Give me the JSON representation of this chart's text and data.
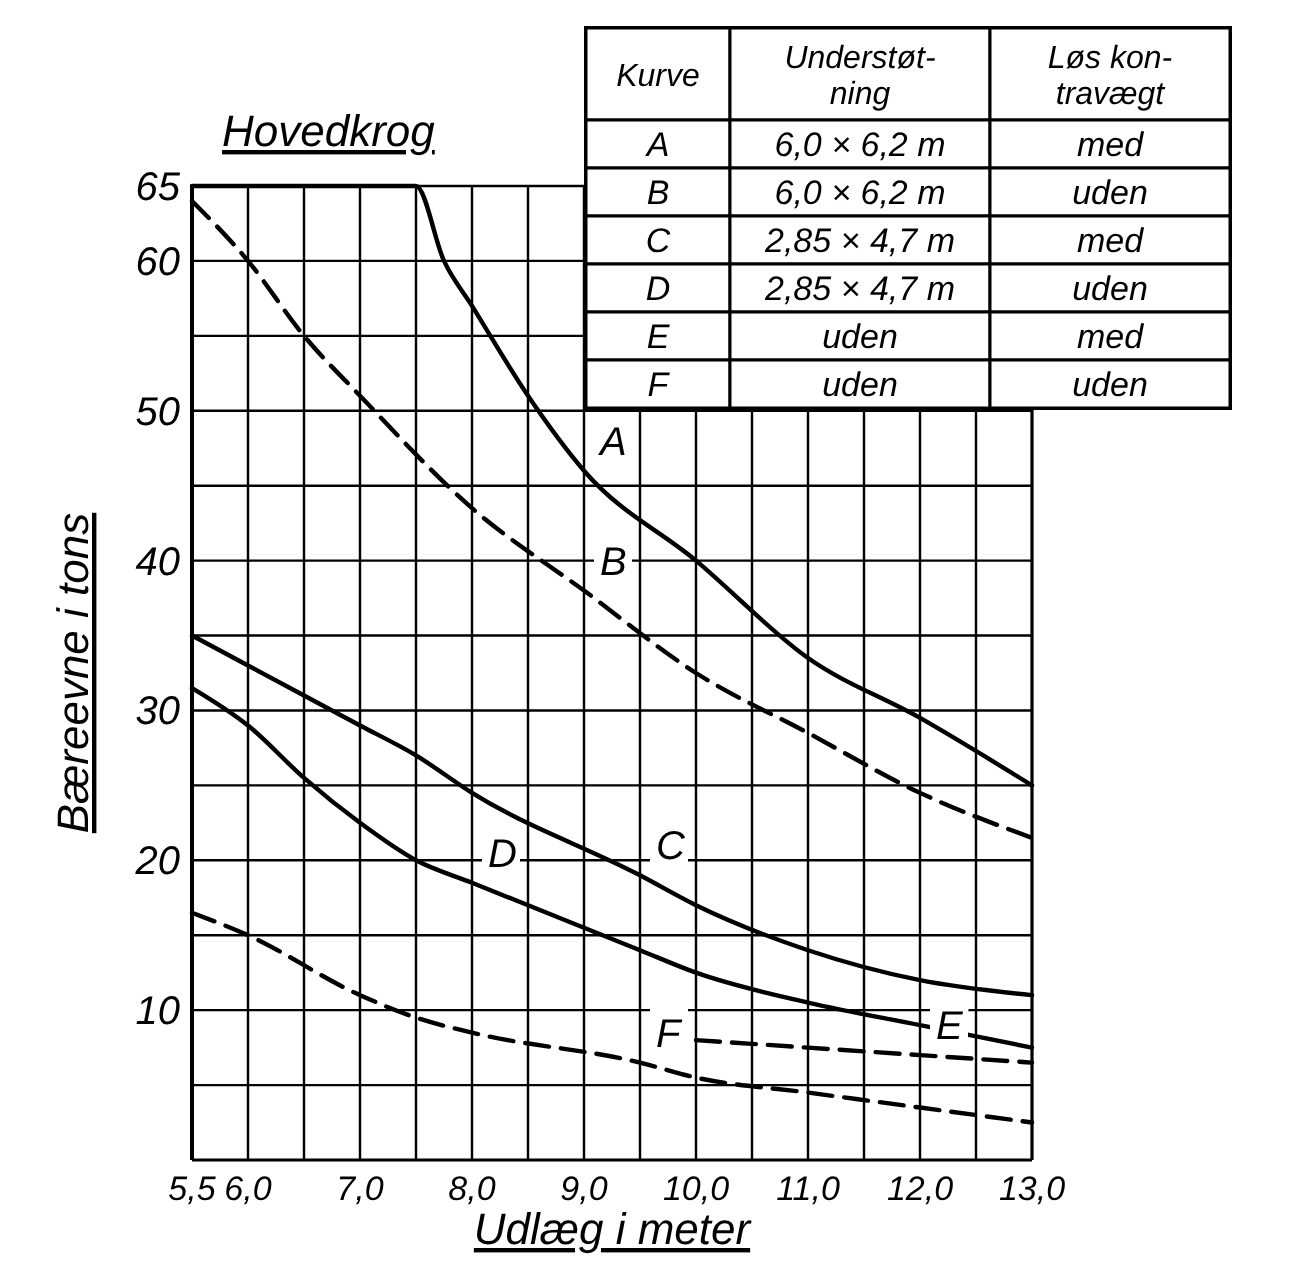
{
  "chart_data": {
    "type": "line",
    "title": "Hovedkrog",
    "xlabel": "Udlæg i meter",
    "ylabel": "Bæreevne i tons",
    "xlim": [
      5.5,
      13.0
    ],
    "ylim": [
      0,
      65
    ],
    "xticks": [
      {
        "value": 5.5,
        "label": "5,5"
      },
      {
        "value": 6.0,
        "label": "6,0"
      },
      {
        "value": 6.5,
        "label": null
      },
      {
        "value": 7.0,
        "label": "7,0"
      },
      {
        "value": 7.5,
        "label": null
      },
      {
        "value": 8.0,
        "label": "8,0"
      },
      {
        "value": 8.5,
        "label": null
      },
      {
        "value": 9.0,
        "label": "9,0"
      },
      {
        "value": 9.5,
        "label": null
      },
      {
        "value": 10.0,
        "label": "10,0"
      },
      {
        "value": 10.5,
        "label": null
      },
      {
        "value": 11.0,
        "label": "11,0"
      },
      {
        "value": 11.5,
        "label": null
      },
      {
        "value": 12.0,
        "label": "12,0"
      },
      {
        "value": 12.5,
        "label": null
      },
      {
        "value": 13.0,
        "label": "13,0"
      }
    ],
    "yticks": [
      {
        "value": 5,
        "label": null
      },
      10,
      {
        "value": 15,
        "label": null
      },
      20,
      {
        "value": 25,
        "label": null
      },
      30,
      {
        "value": 35,
        "label": null
      },
      40,
      {
        "value": 45,
        "label": null
      },
      50,
      {
        "value": 55,
        "label": null
      },
      60,
      65
    ],
    "grid": true,
    "marker": "none",
    "series": [
      {
        "name": "A",
        "color": "#000000",
        "line_style": "solid",
        "x": [
          5.5,
          7.5,
          7.75,
          8.0,
          8.5,
          9.0,
          10.0,
          11.0,
          12.0,
          13.0
        ],
        "values": [
          65,
          65,
          60,
          57,
          51,
          46,
          40,
          33.5,
          29.5,
          25
        ]
      },
      {
        "name": "B",
        "color": "#000000",
        "line_style": "dashed",
        "x": [
          5.5,
          6.0,
          6.5,
          7.0,
          8.0,
          9.0,
          10.0,
          11.0,
          12.0,
          13.0
        ],
        "values": [
          64,
          60,
          55,
          51,
          43.5,
          38,
          32.5,
          28.5,
          24.5,
          21.5
        ]
      },
      {
        "name": "C",
        "color": "#000000",
        "line_style": "solid",
        "x": [
          5.5,
          6.0,
          7.0,
          7.5,
          8.0,
          9.5,
          10.0,
          11.0,
          12.0,
          13.0
        ],
        "values": [
          35,
          33,
          29,
          27,
          24.5,
          19,
          17,
          14,
          12,
          11
        ]
      },
      {
        "name": "D",
        "color": "#000000",
        "line_style": "solid",
        "x": [
          5.5,
          6.0,
          6.5,
          7.0,
          7.5,
          8.0,
          9.5,
          10.0,
          11.0,
          12.0,
          13.0
        ],
        "values": [
          31.5,
          29,
          25.5,
          22.5,
          20,
          18.5,
          14,
          12.5,
          10.5,
          9,
          7.5
        ]
      },
      {
        "name": "E",
        "color": "#000000",
        "line_style": "dashed",
        "x": [
          10.0,
          11.0,
          12.0,
          13.0
        ],
        "values": [
          8,
          7.5,
          7,
          6.5
        ]
      },
      {
        "name": "F",
        "color": "#000000",
        "line_style": "dashed",
        "x": [
          5.5,
          6.0,
          7.0,
          7.5,
          8.0,
          9.5,
          10.0,
          11.0,
          12.0,
          13.0
        ],
        "values": [
          16.5,
          15,
          11,
          9.5,
          8.5,
          6.5,
          5.5,
          4.5,
          3.5,
          2.5
        ]
      }
    ],
    "annotations": [
      "Kurve",
      "Understøt-\nning",
      "Løs kon-\ntravægt",
      "A",
      "6,0 × 6,2 m",
      "med",
      "B",
      "6,0 × 6,2 m",
      "uden",
      "C",
      "2,85 × 4,7 m",
      "med",
      "D",
      "2,85 × 4,7 m",
      "uden",
      "E",
      "uden",
      "med",
      "F",
      "uden",
      "uden"
    ]
  }
}
